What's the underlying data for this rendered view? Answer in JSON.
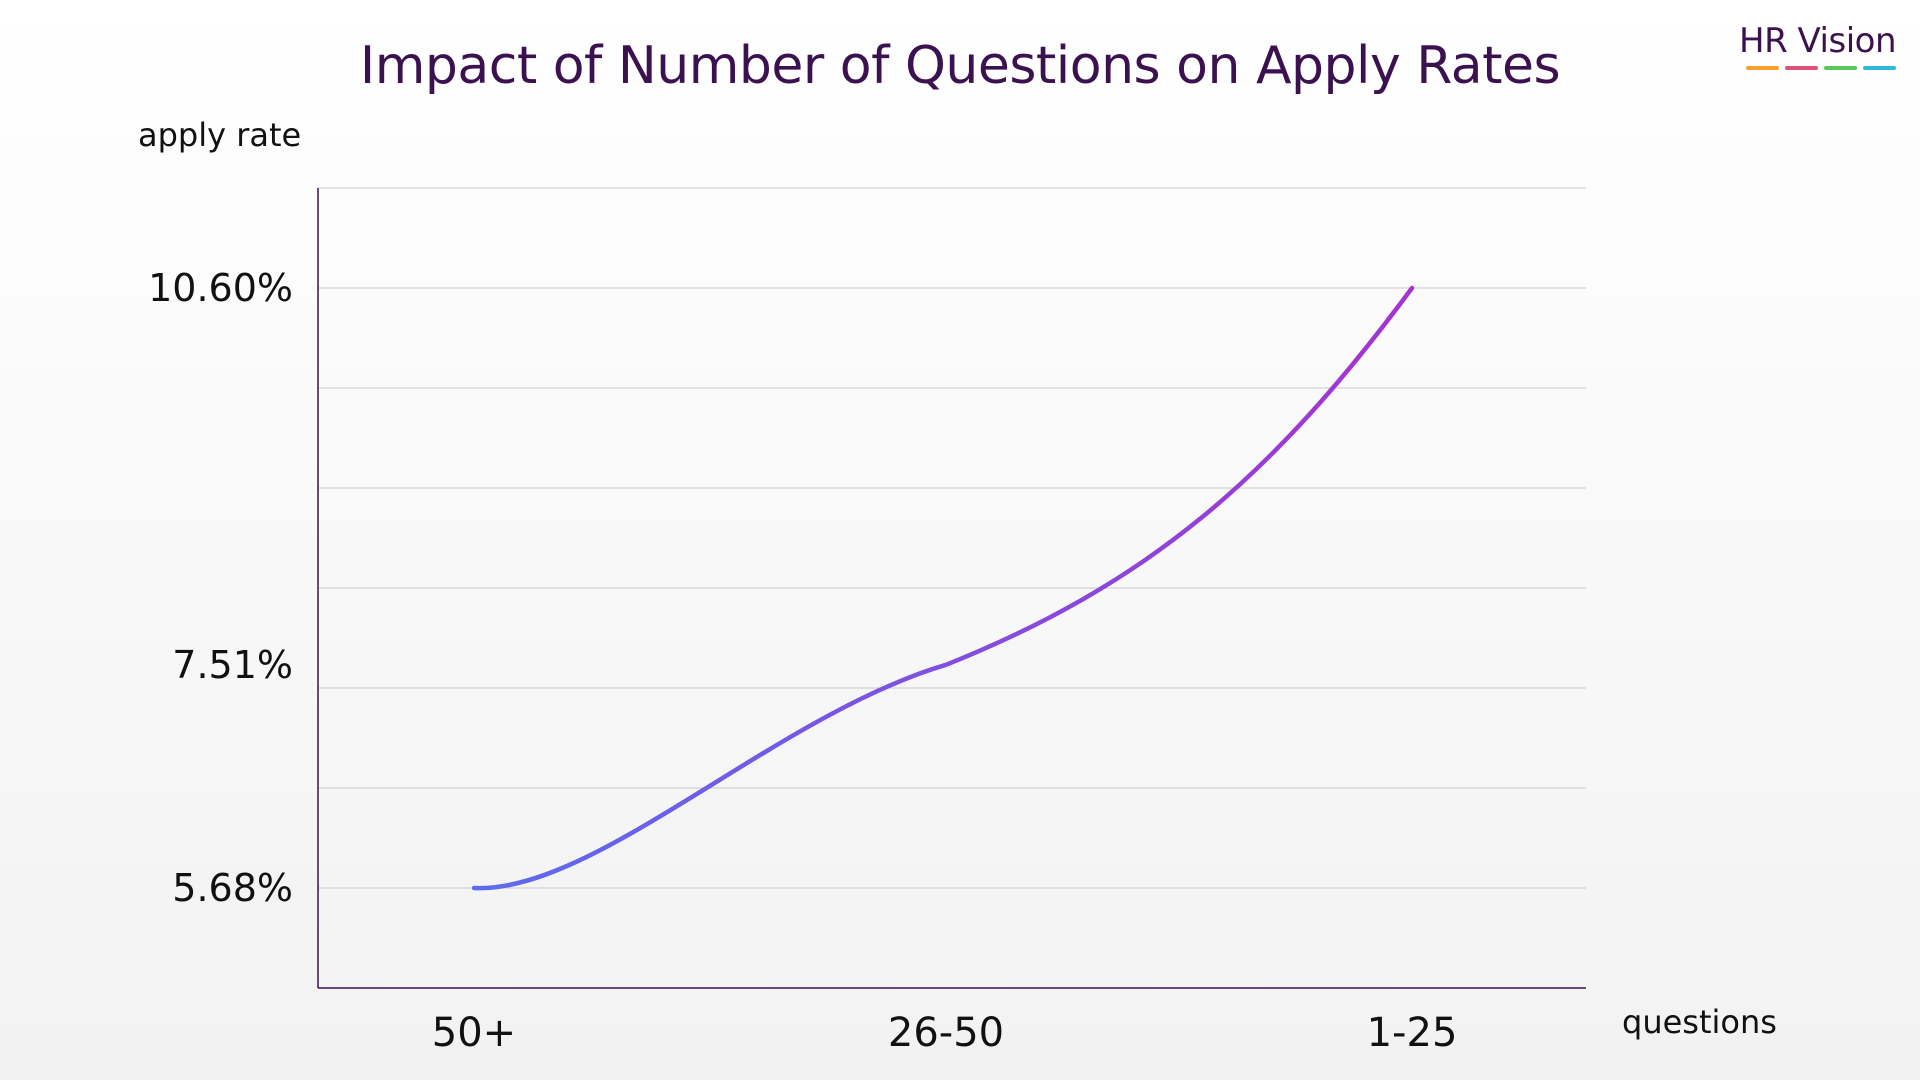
{
  "logo": {
    "text": "HR Vision",
    "bar_colors": [
      "#f5a02c",
      "#e0507a",
      "#55c95a",
      "#2fb8d8"
    ]
  },
  "colors": {
    "title": "#3b1150",
    "axis": "#3b1150",
    "grid": "#d3d3d3",
    "line_start": "#5c6cf0",
    "line_end": "#a533cf"
  },
  "chart_data": {
    "type": "line",
    "title": "Impact of Number of Questions on Apply Rates",
    "xlabel": "questions",
    "ylabel": "apply rate",
    "categories": [
      "50+",
      "26-50",
      "1-25"
    ],
    "y_tick_labels": [
      "10.60%",
      "7.51%",
      "5.68%"
    ],
    "series": [
      {
        "values": [
          5.68,
          7.51,
          10.6
        ]
      }
    ],
    "ylim": [
      5.68,
      10.6
    ],
    "grid": true,
    "smooth": true
  }
}
